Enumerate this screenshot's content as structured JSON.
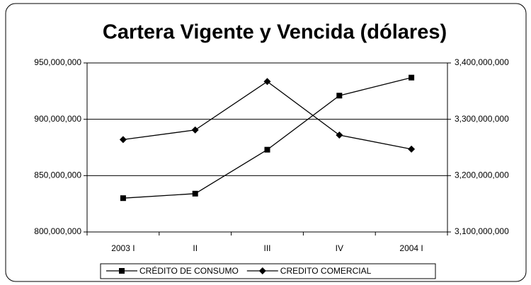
{
  "chart_data": {
    "type": "line",
    "title": "Cartera Vigente y Vencida (dólares)",
    "categories": [
      "2003 I",
      "II",
      "III",
      "IV",
      "2004 I"
    ],
    "series": [
      {
        "name": "CRÉDITO DE CONSUMO",
        "color": "#000000",
        "marker": "square",
        "axis": "y",
        "values": [
          830000000,
          834000000,
          873000000,
          921000000,
          937000000
        ]
      },
      {
        "name": "CREDITO COMERCIAL",
        "color": "#000000",
        "marker": "diamond",
        "axis": "y2",
        "values": [
          3264000000,
          3281000000,
          3367000000,
          3272000000,
          3247000000
        ]
      }
    ],
    "ylim": [
      800000000,
      950000000
    ],
    "yticks": [
      {
        "value": 800000000,
        "label": "800,000,000"
      },
      {
        "value": 850000000,
        "label": "850,000,000"
      },
      {
        "value": 900000000,
        "label": "900,000,000"
      },
      {
        "value": 950000000,
        "label": "950,000,000"
      }
    ],
    "y2lim": [
      3100000000,
      3400000000
    ],
    "y2ticks": [
      {
        "value": 3100000000,
        "label": "3,100,000,000"
      },
      {
        "value": 3200000000,
        "label": "3,200,000,000"
      },
      {
        "value": 3300000000,
        "label": "3,300,000,000"
      },
      {
        "value": 3400000000,
        "label": "3,400,000,000"
      }
    ],
    "grid": true,
    "legend": "bottom"
  }
}
